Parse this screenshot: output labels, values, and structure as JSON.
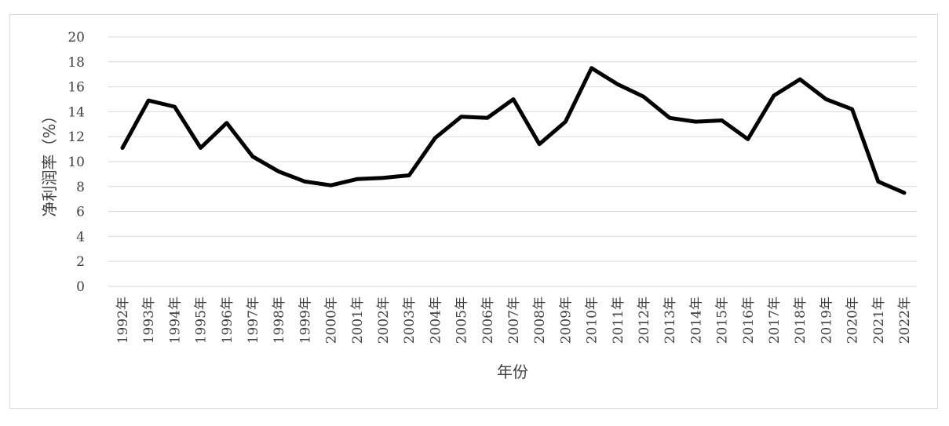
{
  "chart_data": {
    "type": "line",
    "title": "",
    "xlabel": "年份",
    "ylabel": "净利润率（%）",
    "ylim": [
      0,
      20
    ],
    "yticks": [
      0,
      2,
      4,
      6,
      8,
      10,
      12,
      14,
      16,
      18,
      20
    ],
    "grid": true,
    "legend": "none",
    "line_color": "#000000",
    "grid_color": "#d9d9d9",
    "x": [
      "1992年",
      "1993年",
      "1994年",
      "1995年",
      "1996年",
      "1997年",
      "1998年",
      "1999年",
      "2000年",
      "2001年",
      "2002年",
      "2003年",
      "2004年",
      "2005年",
      "2006年",
      "2007年",
      "2008年",
      "2009年",
      "2010年",
      "2011年",
      "2012年",
      "2013年",
      "2014年",
      "2015年",
      "2016年",
      "2017年",
      "2018年",
      "2019年",
      "2020年",
      "2021年",
      "2022年"
    ],
    "series": [
      {
        "values": [
          11.1,
          14.9,
          14.4,
          11.1,
          13.1,
          10.4,
          9.2,
          8.4,
          8.1,
          8.6,
          8.7,
          8.9,
          11.9,
          13.6,
          13.5,
          15.0,
          11.4,
          13.2,
          17.5,
          16.2,
          15.2,
          13.5,
          13.2,
          13.3,
          11.8,
          15.3,
          16.6,
          15.0,
          14.2,
          8.4,
          7.5
        ]
      }
    ]
  }
}
